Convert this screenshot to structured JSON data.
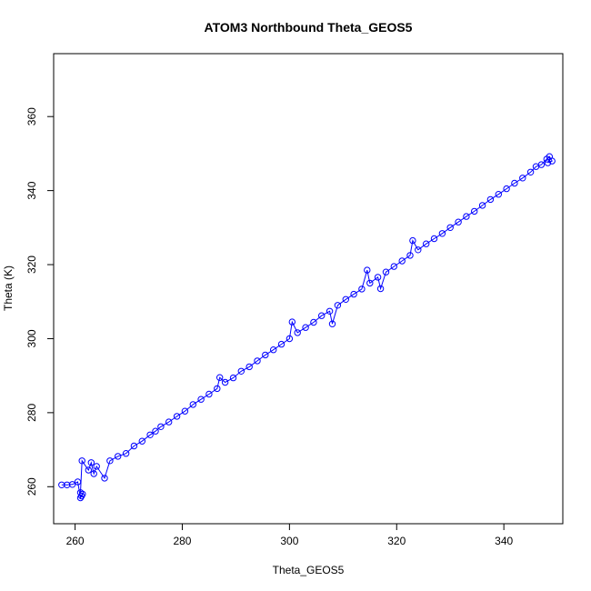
{
  "chart_data": {
    "type": "scatter",
    "title": "ATOM3 Northbound Theta_GEOS5",
    "xlabel": "Theta_GEOS5",
    "ylabel": "Theta (K)",
    "xlim": [
      256,
      351
    ],
    "ylim": [
      250,
      377
    ],
    "xticks": [
      260,
      280,
      300,
      320,
      340
    ],
    "yticks": [
      260,
      280,
      300,
      320,
      340,
      360
    ],
    "xtick_labels": [
      "260",
      "280",
      "300",
      "320",
      "340"
    ],
    "ytick_labels": [
      "260",
      "280",
      "300",
      "320",
      "340",
      "360"
    ],
    "grid": false,
    "marker": "open-circle",
    "connected": true,
    "series_color": "#0000ff",
    "points": [
      [
        257.5,
        260.5
      ],
      [
        258.5,
        260.5
      ],
      [
        259.5,
        260.6
      ],
      [
        260.5,
        261.3
      ],
      [
        261.0,
        257.0
      ],
      [
        261.2,
        257.5
      ],
      [
        261.4,
        258.0
      ],
      [
        261.0,
        258.4
      ],
      [
        261.3,
        267.0
      ],
      [
        262.5,
        264.5
      ],
      [
        263.0,
        266.5
      ],
      [
        263.5,
        263.5
      ],
      [
        264.0,
        265.5
      ],
      [
        265.5,
        262.3
      ],
      [
        266.5,
        267.0
      ],
      [
        268.0,
        268.2
      ],
      [
        269.5,
        269.0
      ],
      [
        271.0,
        271.0
      ],
      [
        272.5,
        272.3
      ],
      [
        274.0,
        274.0
      ],
      [
        275.0,
        275.0
      ],
      [
        276.0,
        276.2
      ],
      [
        277.5,
        277.5
      ],
      [
        279.0,
        279.0
      ],
      [
        280.5,
        280.4
      ],
      [
        282.0,
        282.2
      ],
      [
        283.5,
        283.6
      ],
      [
        285.0,
        285.0
      ],
      [
        286.5,
        286.5
      ],
      [
        287.0,
        289.5
      ],
      [
        288.0,
        288.2
      ],
      [
        289.5,
        289.4
      ],
      [
        291.0,
        291.2
      ],
      [
        292.5,
        292.4
      ],
      [
        294.0,
        294.0
      ],
      [
        295.5,
        295.6
      ],
      [
        297.0,
        297.0
      ],
      [
        298.5,
        298.5
      ],
      [
        300.0,
        300.0
      ],
      [
        300.5,
        304.5
      ],
      [
        301.5,
        301.6
      ],
      [
        303.0,
        303.0
      ],
      [
        304.5,
        304.4
      ],
      [
        306.0,
        306.2
      ],
      [
        307.5,
        307.4
      ],
      [
        308.0,
        304.0
      ],
      [
        309.0,
        309.0
      ],
      [
        310.5,
        310.6
      ],
      [
        312.0,
        312.0
      ],
      [
        313.5,
        313.4
      ],
      [
        314.5,
        318.5
      ],
      [
        315.0,
        315.0
      ],
      [
        316.5,
        316.6
      ],
      [
        317.0,
        313.5
      ],
      [
        318.0,
        318.0
      ],
      [
        319.5,
        319.5
      ],
      [
        321.0,
        321.0
      ],
      [
        322.5,
        322.5
      ],
      [
        323.0,
        326.5
      ],
      [
        324.0,
        324.0
      ],
      [
        325.5,
        325.6
      ],
      [
        327.0,
        327.0
      ],
      [
        328.5,
        328.4
      ],
      [
        330.0,
        330.0
      ],
      [
        331.5,
        331.5
      ],
      [
        333.0,
        333.0
      ],
      [
        334.5,
        334.4
      ],
      [
        336.0,
        336.0
      ],
      [
        337.5,
        337.6
      ],
      [
        339.0,
        339.0
      ],
      [
        340.5,
        340.5
      ],
      [
        342.0,
        342.0
      ],
      [
        343.5,
        343.4
      ],
      [
        345.0,
        345.0
      ],
      [
        346.0,
        346.5
      ],
      [
        347.0,
        347.0
      ],
      [
        348.0,
        348.5
      ],
      [
        348.5,
        349.2
      ],
      [
        349.0,
        348.0
      ],
      [
        348.2,
        347.5
      ]
    ]
  }
}
